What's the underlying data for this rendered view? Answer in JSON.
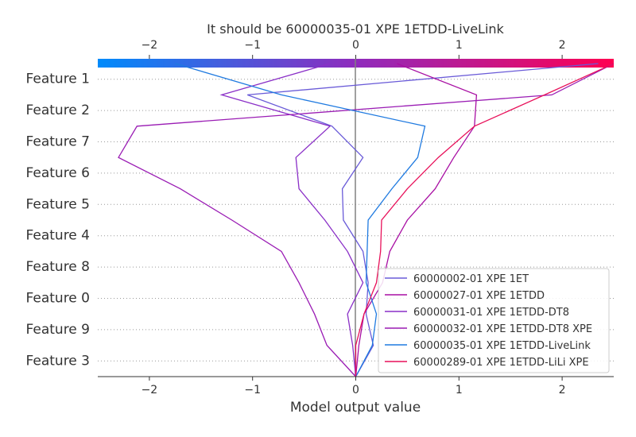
{
  "chart_data": {
    "type": "line",
    "title": "It should be 60000035-01 XPE 1ETDD-LiveLink",
    "xlabel": "Model output value",
    "ylabel": "",
    "xlim": [
      -2.5,
      2.5
    ],
    "x_ticks": [
      -2,
      -1,
      0,
      1,
      2
    ],
    "x_tick_labels": [
      "−2",
      "−1",
      "0",
      "1",
      "2"
    ],
    "features": [
      "Feature 1",
      "Feature 2",
      "Feature 7",
      "Feature 6",
      "Feature 5",
      "Feature 4",
      "Feature 8",
      "Feature 0",
      "Feature 9",
      "Feature 3"
    ],
    "base_value": 0,
    "colorbar": {
      "from": "#008bfb",
      "mid": "#8f2bbd",
      "to": "#ff0051"
    },
    "legend_position": "lower-right",
    "grid": "dotted horizontal lines at feature rows",
    "series": [
      {
        "name": "60000002-01 XPE 1ET",
        "color": "#6a5bd8",
        "values": [
          0.0,
          0.17,
          0.1,
          0.12,
          0.07,
          -0.12,
          -0.13,
          0.07,
          -0.23,
          -1.05,
          2.35
        ]
      },
      {
        "name": "60000027-01 XPE 1ETDD",
        "color": "#a80fa3",
        "values": [
          0.0,
          0.03,
          0.08,
          0.26,
          0.33,
          0.5,
          0.77,
          0.95,
          1.15,
          1.17,
          0.4
        ]
      },
      {
        "name": "60000031-01 XPE 1ETDD-DT8",
        "color": "#8a2fc7",
        "values": [
          0.0,
          -0.03,
          -0.08,
          0.07,
          -0.08,
          -0.3,
          -0.55,
          -0.58,
          -0.25,
          -1.3,
          -0.25
        ]
      },
      {
        "name": "60000032-01 XPE 1ETDD-DT8 XPE",
        "color": "#9a1cb4",
        "values": [
          0.0,
          -0.28,
          -0.4,
          -0.55,
          -0.72,
          -1.2,
          -1.7,
          -2.3,
          -2.12,
          1.9,
          2.5
        ]
      },
      {
        "name": "60000035-01 XPE 1ETDD-LiveLink",
        "color": "#1f7ae0",
        "values": [
          0.0,
          0.16,
          0.2,
          0.1,
          0.11,
          0.12,
          0.35,
          0.6,
          0.67,
          -0.72,
          -1.75
        ]
      },
      {
        "name": "60000289-01 XPE 1ETDD-LiLi XPE",
        "color": "#e8115a",
        "values": [
          0.0,
          0.0,
          0.08,
          0.2,
          0.24,
          0.25,
          0.5,
          0.8,
          1.15,
          1.83,
          2.5
        ]
      }
    ]
  }
}
